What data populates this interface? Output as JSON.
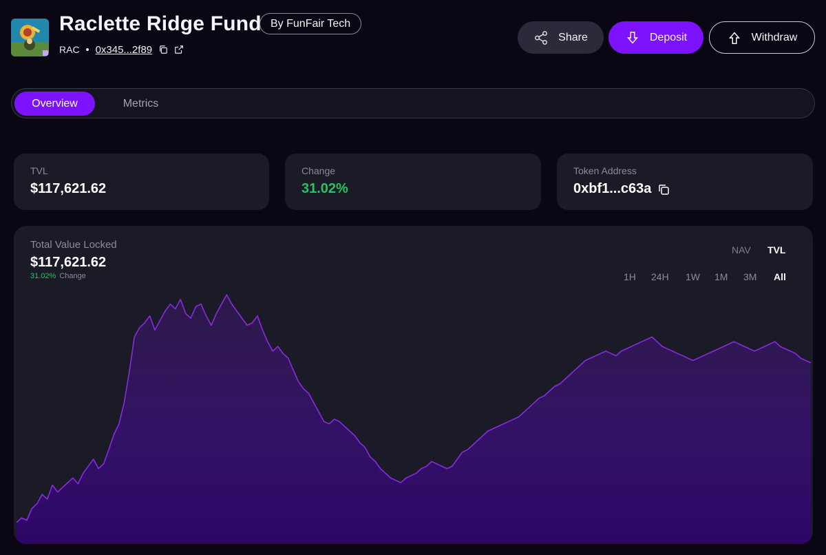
{
  "fund": {
    "title": "Raclette Ridge Fund",
    "by_label": "By FunFair Tech",
    "symbol": "RAC",
    "address": "0x345...2f89"
  },
  "actions": {
    "share_label": "Share",
    "deposit_label": "Deposit",
    "withdraw_label": "Withdraw"
  },
  "tabs": [
    {
      "label": "Overview",
      "active": true
    },
    {
      "label": "Metrics",
      "active": false
    }
  ],
  "stats": {
    "tvl_label": "TVL",
    "tvl_value": "$117,621.62",
    "change_label": "Change",
    "change_value": "31.02%",
    "token_label": "Token Address",
    "token_value": "0xbf1...c63a"
  },
  "chart": {
    "label": "Total Value Locked",
    "value": "$117,621.62",
    "change_pct": "31.02%",
    "change_label": "Change",
    "modes": [
      "NAV",
      "TVL"
    ],
    "active_mode": "TVL",
    "ranges": [
      "1H",
      "24H",
      "1W",
      "1M",
      "3M",
      "All"
    ],
    "active_range": "All"
  },
  "colors": {
    "accent": "#7d12ff",
    "positive": "#22c55e",
    "line": "#8a2be2"
  },
  "chart_data": {
    "type": "area",
    "series": [
      {
        "values": [
          10,
          14,
          12,
          22,
          26,
          34,
          30,
          42,
          36,
          40,
          44,
          48,
          43,
          52,
          58,
          64,
          56,
          60,
          72,
          85,
          94,
          112,
          138,
          168,
          176,
          180,
          186,
          174,
          182,
          190,
          196,
          192,
          200,
          188,
          184,
          194,
          196,
          186,
          178,
          188,
          196,
          204,
          196,
          190,
          184,
          178,
          180,
          186,
          174,
          164,
          156,
          160,
          154,
          150,
          140,
          130,
          124,
          120,
          112,
          104,
          96,
          94,
          98,
          96,
          92,
          88,
          84,
          78,
          74,
          66,
          62,
          56,
          52,
          48,
          46,
          44,
          48,
          50,
          52,
          56,
          58,
          62,
          60,
          58,
          56,
          58,
          64,
          70,
          72,
          76,
          80,
          84,
          88,
          90,
          92,
          94,
          96,
          98,
          100,
          104,
          108,
          112,
          116,
          118,
          122,
          126,
          128,
          132,
          136,
          140,
          144,
          148,
          150,
          152,
          154,
          156,
          154,
          152,
          156,
          158,
          160,
          162,
          164,
          166,
          168,
          164,
          160,
          158,
          156,
          154,
          152,
          150,
          148,
          150,
          152,
          154,
          156,
          158,
          160,
          162,
          164,
          162,
          160,
          158,
          156,
          158,
          160,
          162,
          164,
          160,
          158,
          156,
          154,
          150,
          148,
          146
        ]
      }
    ],
    "xlabel": "",
    "ylabel": "",
    "grid": false
  }
}
